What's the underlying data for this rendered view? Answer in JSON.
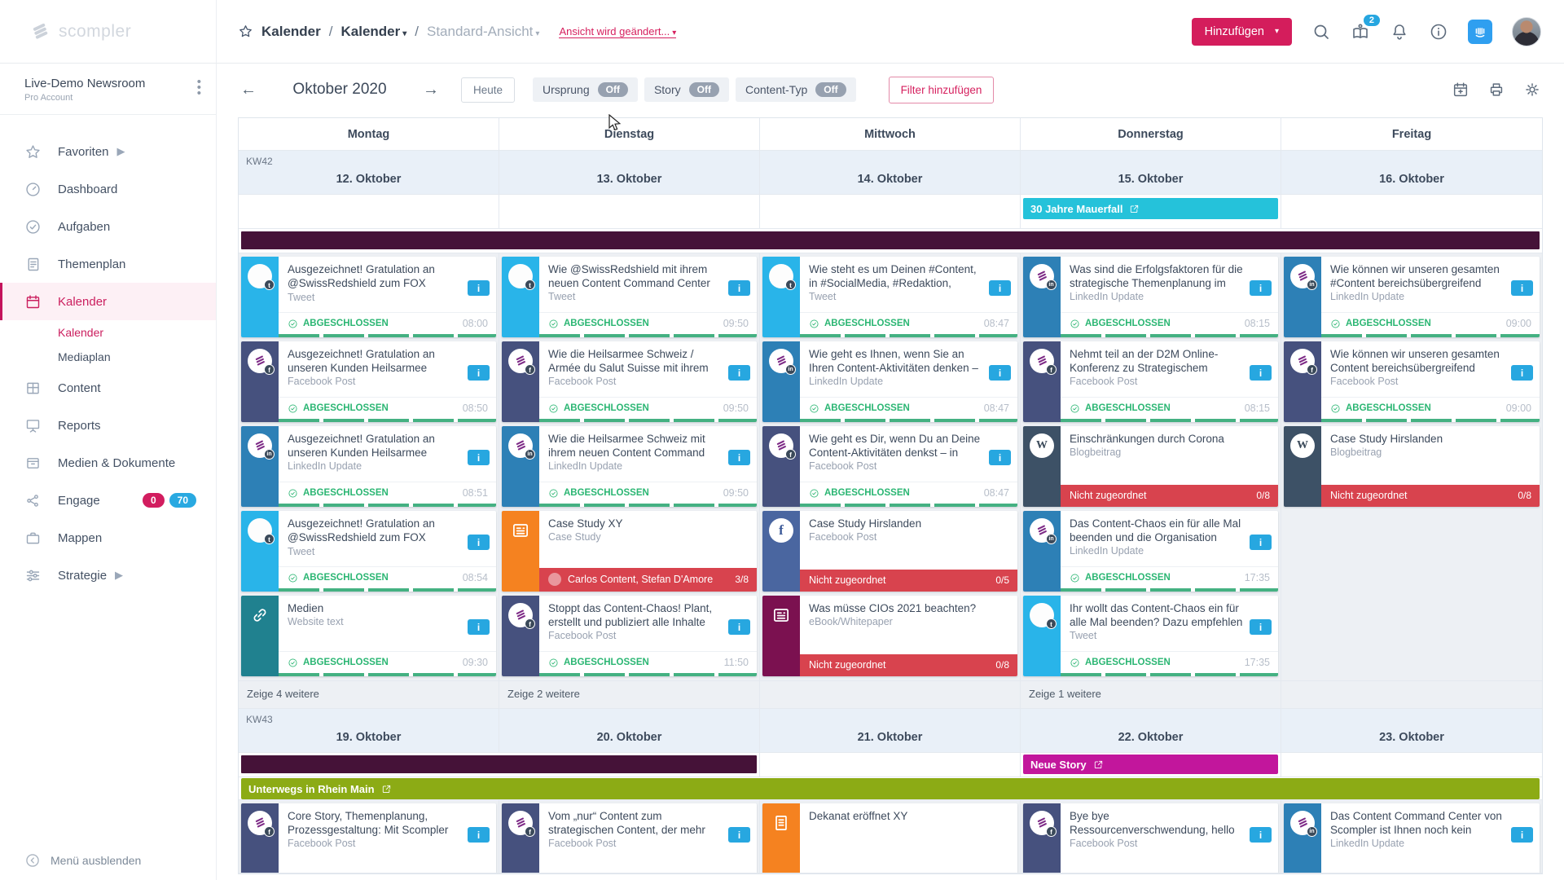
{
  "topbar": {
    "logo_text": "scompler",
    "breadcrumb": {
      "root": "Kalender",
      "section": "Kalender",
      "view": "Standard-Ansicht"
    },
    "view_link": "Ansicht wird geändert...",
    "add_button": "Hinzufügen",
    "orientation_badge": "2"
  },
  "sidebar": {
    "workspace": {
      "name": "Live-Demo Newsroom",
      "plan": "Pro Account"
    },
    "items": [
      {
        "icon": "star",
        "label": "Favoriten",
        "chevron": true
      },
      {
        "icon": "gauge",
        "label": "Dashboard"
      },
      {
        "icon": "check",
        "label": "Aufgaben"
      },
      {
        "icon": "note",
        "label": "Themenplan"
      },
      {
        "icon": "calendar",
        "label": "Kalender",
        "active": true,
        "subitems": [
          {
            "label": "Kalender",
            "active": true
          },
          {
            "label": "Mediaplan"
          }
        ]
      },
      {
        "icon": "grid",
        "label": "Content"
      },
      {
        "icon": "present",
        "label": "Reports"
      },
      {
        "icon": "archive",
        "label": "Medien & Dokumente"
      },
      {
        "icon": "share",
        "label": "Engage",
        "badges": [
          {
            "text": "0",
            "color": "#d21d5f"
          },
          {
            "text": "70",
            "color": "#29a9e1"
          }
        ]
      },
      {
        "icon": "brief",
        "label": "Mappen"
      },
      {
        "icon": "sliders",
        "label": "Strategie",
        "chevron": true
      }
    ],
    "footer": "Menü ausblenden"
  },
  "toolbar": {
    "month": "Oktober 2020",
    "today": "Heute",
    "toggles": [
      {
        "label": "Ursprung",
        "state": "Off"
      },
      {
        "label": "Story",
        "state": "Off"
      },
      {
        "label": "Content-Typ",
        "state": "Off"
      }
    ],
    "filter": "Filter hinzufügen"
  },
  "labels": {
    "done": "ABGESCHLOSSEN",
    "unassigned": "Nicht zugeordnet"
  },
  "platform_colors": {
    "tw": "#29b4e9",
    "sc-fb": "#46517e",
    "sc-li": "#2d80b6",
    "fb": "#4a66a0",
    "wp": "#3d5166",
    "news": "#f58220",
    "ebook": "#7b1150",
    "link": "#20818f",
    "doc": "#f58220"
  },
  "calendar": {
    "days": [
      "Montag",
      "Dienstag",
      "Mittwoch",
      "Donnerstag",
      "Freitag"
    ],
    "week1": {
      "kw": "KW42",
      "dates": [
        "12. Oktober",
        "13. Oktober",
        "14. Oktober",
        "15. Oktober",
        "16. Oktober"
      ],
      "event_banner": {
        "label": "30 Jahre Mauerfall",
        "color": "#25c2da",
        "column": 3
      },
      "full_bar_color": "#451238",
      "columns": [
        {
          "more": "Zeige 4 weitere",
          "cards": [
            {
              "platform": "tw",
              "title": "Ausgezeichnet! Gratulation an @SwissRedshield zum FOX AWARD",
              "type": "Tweet",
              "status": "done",
              "time": "08:00",
              "badge": true
            },
            {
              "platform": "sc-fb",
              "title": "Ausgezeichnet! Gratulation an unseren Kunden Heilsarmee",
              "type": "Facebook Post",
              "status": "done",
              "time": "08:50",
              "badge": true
            },
            {
              "platform": "sc-li",
              "title": "Ausgezeichnet! Gratulation an unseren Kunden Heilsarmee",
              "type": "LinkedIn Update",
              "status": "done",
              "time": "08:51",
              "badge": true
            },
            {
              "platform": "tw",
              "title": "Ausgezeichnet! Gratulation an @SwissRedshield zum FOX AWARD",
              "type": "Tweet",
              "status": "done",
              "time": "08:54",
              "badge": true
            },
            {
              "platform": "link",
              "title": "Medien",
              "type": "Website text",
              "status": "done",
              "time": "09:30",
              "badge": true
            }
          ]
        },
        {
          "more": "Zeige 2 weitere",
          "cards": [
            {
              "platform": "tw",
              "title": "Wie @SwissRedshield mit ihrem neuen Content Command Center",
              "type": "Tweet",
              "status": "done",
              "time": "09:50",
              "badge": true
            },
            {
              "platform": "sc-fb",
              "title": "Wie die Heilsarmee Schweiz / Armée du Salut Suisse mit ihrem",
              "type": "Facebook Post",
              "status": "done",
              "time": "09:50",
              "badge": true
            },
            {
              "platform": "sc-li",
              "title": "Wie die Heilsarmee Schweiz mit ihrem neuen Content Command",
              "type": "LinkedIn Update",
              "status": "done",
              "time": "09:50",
              "badge": true
            },
            {
              "platform": "news",
              "title": "Case Study XY",
              "type": "Case Study",
              "assign": {
                "names": "Carlos Content, Stefan D'Amore",
                "ratio": "3/8",
                "avatar": true
              }
            },
            {
              "platform": "sc-fb",
              "title": "Stoppt das Content-Chaos! Plant, erstellt und publiziert alle Inhalte",
              "type": "Facebook Post",
              "status": "done",
              "time": "11:50",
              "badge": true
            }
          ]
        },
        {
          "more": "",
          "cards": [
            {
              "platform": "tw",
              "title": "Wie steht es um Deinen #Content, in #SocialMedia, #Redaktion,",
              "type": "Tweet",
              "status": "done",
              "time": "08:47",
              "badge": true
            },
            {
              "platform": "sc-li",
              "title": "Wie geht es Ihnen, wenn Sie an Ihren Content-Aktivitäten denken –",
              "type": "LinkedIn Update",
              "status": "done",
              "time": "08:47",
              "badge": true
            },
            {
              "platform": "sc-fb",
              "title": "Wie geht es Dir, wenn Du an Deine Content-Aktivitäten denkst – in",
              "type": "Facebook Post",
              "status": "done",
              "time": "08:47",
              "badge": true
            },
            {
              "platform": "fb",
              "title": "Case Study Hirslanden",
              "type": "Facebook Post",
              "assign": {
                "names": "Nicht zugeordnet",
                "ratio": "0/5"
              }
            },
            {
              "platform": "ebook",
              "title": "Was müsse CIOs 2021 beachten?",
              "type": "eBook/Whitepaper",
              "assign": {
                "names": "Nicht zugeordnet",
                "ratio": "0/8"
              }
            }
          ]
        },
        {
          "more": "Zeige 1 weitere",
          "cards": [
            {
              "platform": "sc-li",
              "title": "Was sind die Erfolgsfaktoren für die strategische Themenplanung im",
              "type": "LinkedIn Update",
              "status": "done",
              "time": "08:15",
              "badge": true
            },
            {
              "platform": "sc-fb",
              "title": "Nehmt teil an der D2M Online-Konferenz zu Strategischem",
              "type": "Facebook Post",
              "status": "done",
              "time": "08:15",
              "badge": true
            },
            {
              "platform": "wp",
              "title": "Einschränkungen durch Corona",
              "type": "Blogbeitrag",
              "assign": {
                "names": "Nicht zugeordnet",
                "ratio": "0/8"
              }
            },
            {
              "platform": "sc-li",
              "title": "Das Content-Chaos ein für alle Mal beenden und die Organisation",
              "type": "LinkedIn Update",
              "status": "done",
              "time": "17:35",
              "badge": true
            },
            {
              "platform": "tw",
              "title": "Ihr wollt das Content-Chaos ein für alle Mal beenden? Dazu empfehlen",
              "type": "Tweet",
              "status": "done",
              "time": "17:35",
              "badge": true
            }
          ]
        },
        {
          "more": "",
          "cards": [
            {
              "platform": "sc-li",
              "title": "Wie können wir unseren gesamten #Content bereichsübergreifend",
              "type": "LinkedIn Update",
              "status": "done",
              "time": "09:00",
              "badge": true
            },
            {
              "platform": "sc-fb",
              "title": "Wie können wir unseren gesamten Content bereichsübergreifend",
              "type": "Facebook Post",
              "status": "done",
              "time": "09:00",
              "badge": true
            },
            {
              "platform": "wp",
              "title": "Case Study Hirslanden",
              "type": "Blogbeitrag",
              "assign": {
                "names": "Nicht zugeordnet",
                "ratio": "0/8"
              }
            }
          ]
        }
      ]
    },
    "week2": {
      "kw": "KW43",
      "dates": [
        "19. Oktober",
        "20. Oktober",
        "21. Oktober",
        "22. Oktober",
        "23. Oktober"
      ],
      "span_bar": {
        "color": "#451238",
        "cols": 2
      },
      "new_story": {
        "label": "Neue Story",
        "color": "#c2169c",
        "column": 3
      },
      "green_banner": {
        "label": "Unterwegs in Rhein Main",
        "color": "#8cab15"
      },
      "bottom_cards": [
        {
          "platform": "sc-fb",
          "title": "Core Story, Themenplanung, Prozessgestaltung: Mit Scompler",
          "type": "Facebook Post",
          "badge": true
        },
        {
          "platform": "sc-fb",
          "title": "Vom „nur“ Content zum strategischen Content, der mehr",
          "type": "Facebook Post",
          "badge": true
        },
        {
          "platform": "doc",
          "title": "Dekanat eröffnet XY",
          "type": "",
          "badge": false
        },
        {
          "platform": "sc-fb",
          "title": "Bye bye Ressourcenverschwendung, hello",
          "type": "Facebook Post",
          "badge": true
        },
        {
          "platform": "sc-li",
          "title": "Das Content Command Center von Scompler ist Ihnen noch kein",
          "type": "LinkedIn Update",
          "badge": true
        }
      ]
    }
  }
}
